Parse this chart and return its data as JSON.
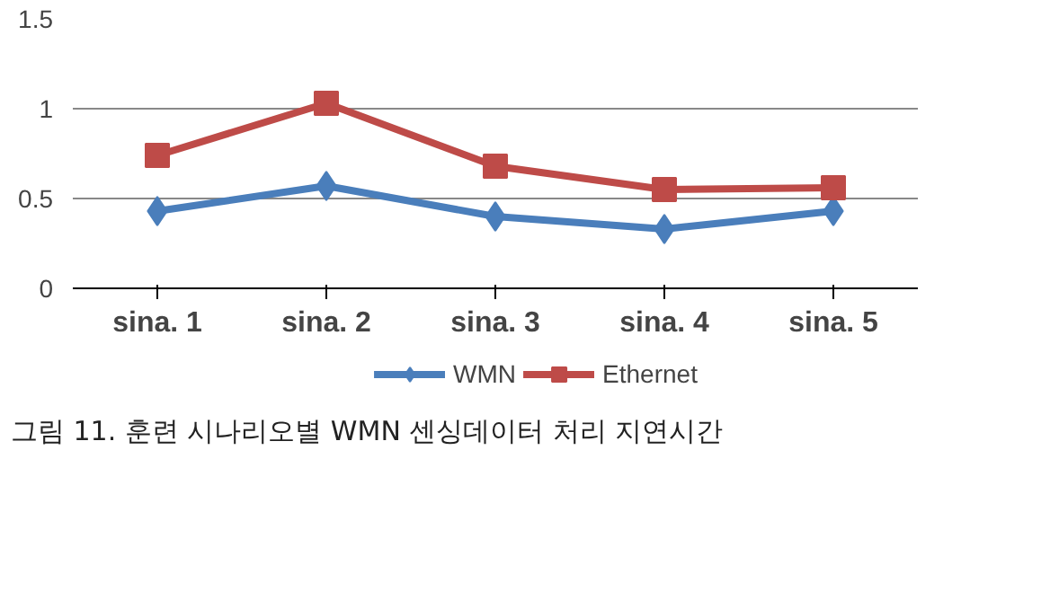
{
  "chart_data": {
    "type": "line",
    "title": "그림 11. 훈련 시나리오별 WMN 센싱데이터 처리 지연시간",
    "categories": [
      "sina. 1",
      "sina. 2",
      "sina. 3",
      "sina. 4",
      "sina. 5"
    ],
    "series": [
      {
        "name": "WMN",
        "color": "#4a7ebb",
        "marker": "diamond",
        "values": [
          0.43,
          0.57,
          0.4,
          0.33,
          0.43
        ]
      },
      {
        "name": "Ethernet",
        "color": "#be4b48",
        "marker": "square",
        "values": [
          0.74,
          1.03,
          0.68,
          0.55,
          0.56
        ]
      }
    ],
    "ylim": [
      0,
      1.5
    ],
    "yticks": [
      0,
      0.5,
      1,
      1.5
    ],
    "grid": "y",
    "legend": "bottom",
    "line_style": "solid"
  }
}
